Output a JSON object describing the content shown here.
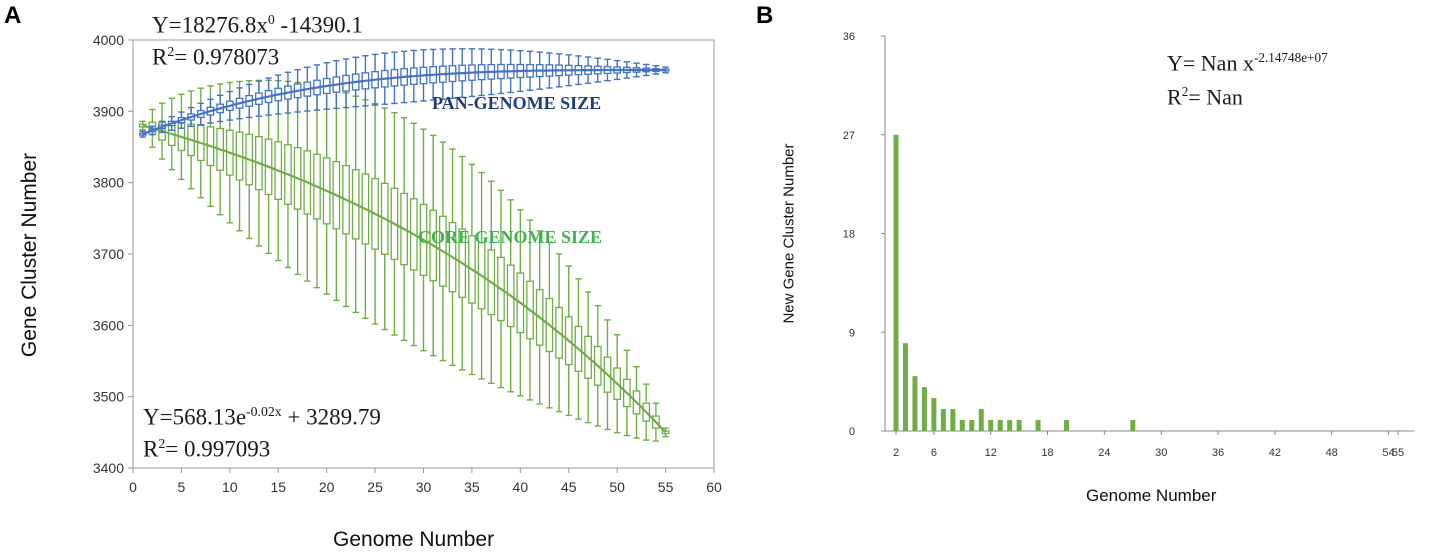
{
  "panels": {
    "a_label": "A",
    "b_label": "B"
  },
  "colors": {
    "pan": "#4472C4",
    "pan_text": "#1F3A7A",
    "core": "#70AD47",
    "core_text": "#3CB44B",
    "bar": "#70AD47",
    "axis": "#999999",
    "tick_text": "#333333"
  },
  "panel_a": {
    "pan_eq": {
      "prefix": "Y=18276.8x",
      "sup": "0",
      "suffix": " -14390.1"
    },
    "pan_r2": {
      "prefix": "R",
      "sup": "2",
      "suffix": "= 0.978073"
    },
    "core_eq": {
      "prefix": "Y=568.13e",
      "sup": "-0.02x",
      "suffix": " + 3289.79"
    },
    "core_r2": {
      "prefix": "R",
      "sup": "2",
      "suffix": "= 0.997093"
    }
  },
  "panel_b": {
    "eq": {
      "prefix": "Y= Nan x",
      "sup": "-2.14748e+07",
      "suffix": ""
    },
    "r2": {
      "prefix": "R",
      "sup": "2",
      "suffix": "= Nan"
    }
  },
  "chart_data": [
    {
      "type": "box_line",
      "panel": "A",
      "title": "",
      "xlabel": "Genome Number",
      "ylabel": "Gene Cluster Number",
      "xlim": [
        0,
        60
      ],
      "ylim": [
        3400,
        4000
      ],
      "xticks": [
        0,
        5,
        10,
        15,
        20,
        25,
        30,
        35,
        40,
        45,
        50,
        55,
        60
      ],
      "yticks": [
        3400,
        3500,
        3600,
        3700,
        3800,
        3900,
        4000
      ],
      "annotations": [
        "PAN-GENOME SIZE",
        "CORE GENOME SIZE"
      ],
      "series": [
        {
          "name": "PAN-GENOME SIZE",
          "x_range": [
            1,
            55
          ],
          "fit": {
            "a": 18276.8,
            "b": 0,
            "c": -14390.1
          },
          "start": 3868,
          "end": 3958,
          "whisker_spread_max": 32
        },
        {
          "name": "CORE GENOME SIZE",
          "x_range": [
            1,
            55
          ],
          "fit": {
            "a": 568.13,
            "k": -0.02,
            "c": 3289.79
          },
          "start": 3880,
          "end": 3450,
          "whisker_spread_max": 150
        }
      ]
    },
    {
      "type": "bar",
      "panel": "B",
      "title": "",
      "xlabel": "Genome Number",
      "ylabel": "New Gene Cluster Number",
      "xlim": [
        0,
        55
      ],
      "ylim": [
        0,
        36
      ],
      "xticks": [
        "2",
        "6",
        "12",
        "18",
        "24",
        "30",
        "36",
        "42",
        "48",
        "54",
        "55"
      ],
      "xtick_values": [
        2,
        6,
        12,
        18,
        24,
        30,
        36,
        42,
        48,
        54,
        55
      ],
      "yticks": [
        0,
        9,
        18,
        27,
        36
      ],
      "x": [
        2,
        3,
        4,
        5,
        6,
        7,
        8,
        9,
        10,
        11,
        12,
        13,
        14,
        15,
        17,
        20,
        27
      ],
      "values": [
        27,
        8,
        5,
        4,
        3,
        2,
        2,
        1,
        1,
        2,
        1,
        1,
        1,
        1,
        1,
        1,
        1
      ]
    }
  ]
}
